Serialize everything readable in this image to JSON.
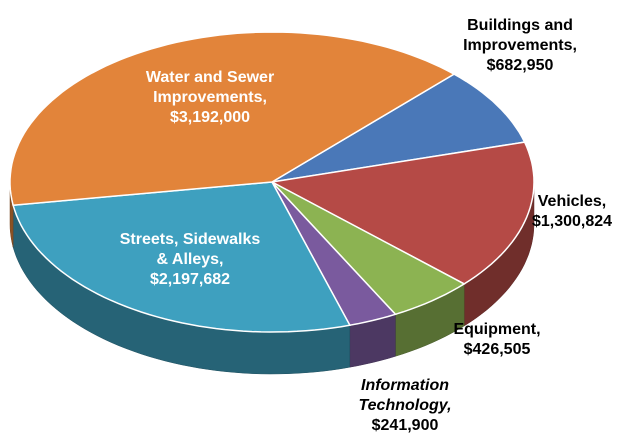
{
  "chart_data": {
    "type": "pie",
    "categories": [
      "Buildings and Improvements,",
      "Vehicles,",
      "Equipment,",
      "Information Technology,",
      "Streets, Sidewalks & Alleys,",
      "Water and Sewer Improvements,"
    ],
    "values": [
      682950,
      1300824,
      426505,
      241900,
      2197682,
      3192000
    ],
    "value_labels": [
      "$682,950",
      "$1,300,824",
      "$426,505",
      "$241,900",
      "$2,197,682",
      "$3,192,000"
    ],
    "colors": [
      "#4a78b8",
      "#b54a46",
      "#8cb352",
      "#7a5a9e",
      "#3ea0bf",
      "#e2843a"
    ]
  }
}
